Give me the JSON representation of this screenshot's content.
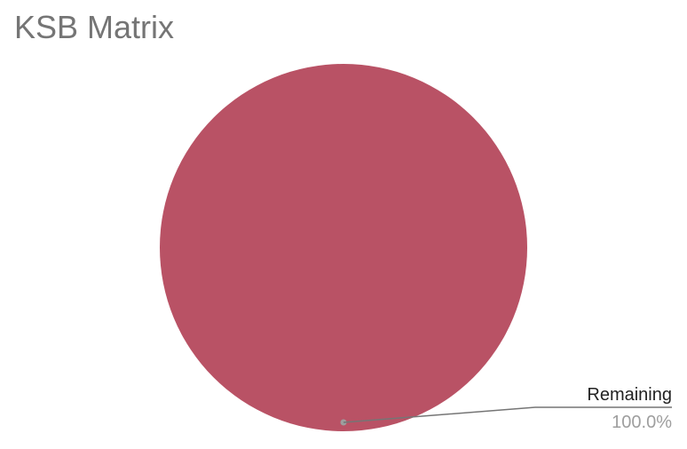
{
  "chart_data": {
    "type": "pie",
    "title": "KSB Matrix",
    "slices": [
      {
        "label": "Remaining",
        "value": 100.0,
        "display_value": "100.0%",
        "color": "#b95265"
      }
    ],
    "label_line_color": "#757575",
    "legend": "none"
  }
}
